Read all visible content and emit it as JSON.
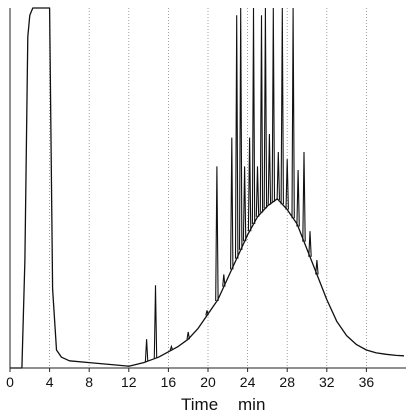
{
  "chart_data": {
    "type": "line",
    "title": "",
    "xlabel": "Time",
    "xlabel_unit": "min",
    "ylabel": "",
    "xlim": [
      0,
      40
    ],
    "ylim": [
      0,
      100
    ],
    "grid": "vertical dotted lines at x ticks",
    "x_ticks": [
      0,
      4,
      8,
      12,
      16,
      20,
      24,
      28,
      32,
      36
    ],
    "x_tick_labels": [
      "0",
      "4",
      "8",
      "12",
      "16",
      "20",
      "24",
      "28",
      "32",
      "36"
    ],
    "series": [
      {
        "x": [
          0,
          1.2,
          1.5,
          1.8,
          2.0,
          2.3,
          2.5,
          3.0,
          3.8,
          4.0,
          4.3,
          4.7,
          5.2,
          6,
          8,
          10,
          12,
          13.5,
          14,
          15,
          16,
          17,
          18,
          19,
          20,
          21,
          22,
          23,
          24,
          25,
          26,
          27,
          28,
          29,
          30,
          31,
          32,
          33,
          34,
          35,
          36,
          37,
          38,
          39,
          39.8
        ],
        "y": [
          0,
          0,
          30,
          92,
          98,
          100,
          100,
          100,
          100,
          100,
          22,
          5,
          3,
          2,
          1.5,
          1,
          0.5,
          1.5,
          2,
          3,
          4.5,
          6,
          8,
          11,
          15,
          19,
          25,
          31,
          37,
          42,
          45,
          47,
          44,
          40,
          33,
          26,
          19,
          13,
          9,
          6.5,
          5,
          4.2,
          3.8,
          3.5,
          3.4
        ]
      }
    ],
    "peaks": [
      {
        "x": 13.8,
        "y": 8
      },
      {
        "x": 14.7,
        "y": 23
      },
      {
        "x": 16.3,
        "y": 6
      },
      {
        "x": 18.0,
        "y": 10
      },
      {
        "x": 19.9,
        "y": 16
      },
      {
        "x": 20.9,
        "y": 56
      },
      {
        "x": 21.6,
        "y": 26
      },
      {
        "x": 22.4,
        "y": 64
      },
      {
        "x": 22.9,
        "y": 98
      },
      {
        "x": 23.3,
        "y": 100
      },
      {
        "x": 23.7,
        "y": 56
      },
      {
        "x": 24.2,
        "y": 64
      },
      {
        "x": 24.6,
        "y": 100
      },
      {
        "x": 25.0,
        "y": 56
      },
      {
        "x": 25.4,
        "y": 98
      },
      {
        "x": 25.8,
        "y": 100
      },
      {
        "x": 26.2,
        "y": 65
      },
      {
        "x": 26.6,
        "y": 100
      },
      {
        "x": 27.1,
        "y": 60
      },
      {
        "x": 27.5,
        "y": 100
      },
      {
        "x": 28.0,
        "y": 58
      },
      {
        "x": 28.6,
        "y": 100
      },
      {
        "x": 29.1,
        "y": 55
      },
      {
        "x": 29.7,
        "y": 60
      },
      {
        "x": 30.3,
        "y": 38
      },
      {
        "x": 31.0,
        "y": 30
      }
    ]
  }
}
